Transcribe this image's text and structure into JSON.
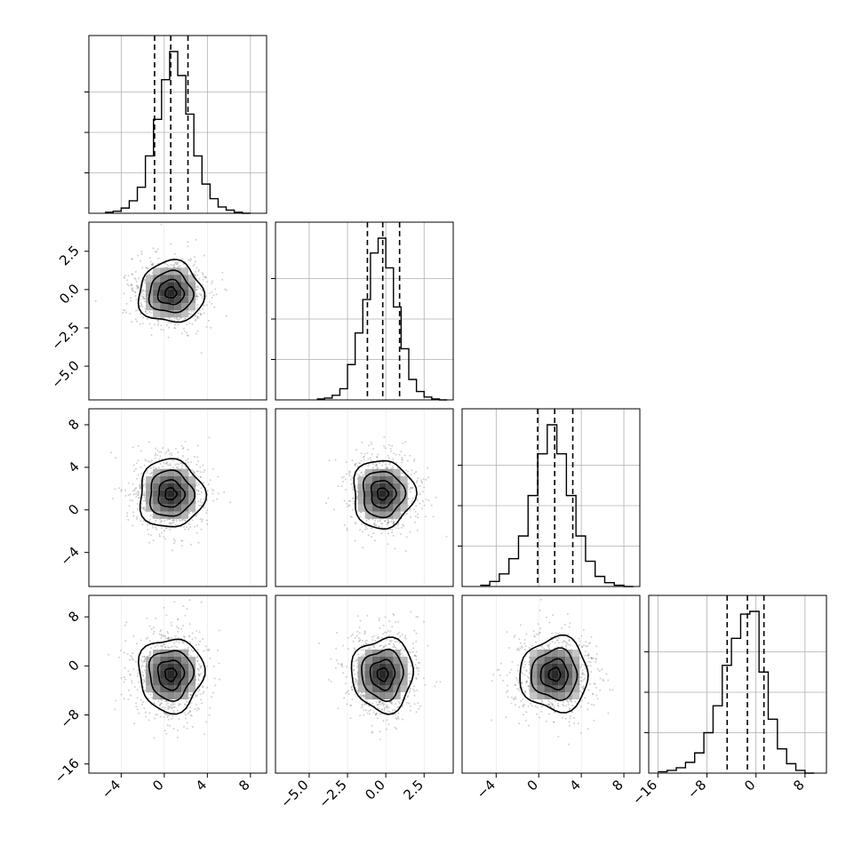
{
  "chart_data": {
    "type": "corner",
    "title": "",
    "grid": true,
    "n_params": 4,
    "params": [
      {
        "xlim": [
          -7,
          9.5
        ],
        "xticks": [
          -4,
          0,
          4,
          8
        ],
        "xtick_labels": [
          "−4",
          "0",
          "4",
          "8"
        ]
      },
      {
        "xlim": [
          -7.2,
          4.4
        ],
        "xticks": [
          -5,
          -2.5,
          0,
          2.5
        ],
        "xtick_labels": [
          "−5.0",
          "−2.5",
          "0.0",
          "2.5"
        ]
      },
      {
        "xlim": [
          -7.2,
          9.5
        ],
        "xticks": [
          -4,
          0,
          4,
          8
        ],
        "xtick_labels": [
          "−4",
          "0",
          "4",
          "8"
        ]
      },
      {
        "xlim": [
          -17.5,
          11.5
        ],
        "xticks": [
          -16,
          -8,
          0,
          8
        ],
        "xtick_labels": [
          "−16",
          "−8",
          "0",
          "8"
        ]
      }
    ],
    "row_axes": [
      {
        "row": 1,
        "yticks": [
          2.5,
          0,
          -2.5,
          -5
        ],
        "ytick_labels": [
          "2.5",
          "0.0",
          "−2.5",
          "−5.0"
        ]
      },
      {
        "row": 2,
        "yticks": [
          8,
          4,
          0,
          -4
        ],
        "ytick_labels": [
          "8",
          "4",
          "0",
          "−4"
        ]
      },
      {
        "row": 3,
        "yticks": [
          8,
          0,
          -8,
          -16
        ],
        "ytick_labels": [
          "8",
          "0",
          "−8",
          "−16"
        ]
      }
    ],
    "quantiles": [
      [
        -0.9,
        0.6,
        2.2
      ],
      [
        -1.2,
        -0.2,
        0.9
      ],
      [
        -0.1,
        1.5,
        3.2
      ],
      [
        -4.7,
        -1.4,
        1.3
      ]
    ],
    "marginals": [
      {
        "bin_edges": [
          -5.5,
          -4.75,
          -4,
          -3.25,
          -2.5,
          -1.75,
          -1,
          -0.25,
          0.5,
          1.25,
          2,
          2.75,
          3.5,
          4.25,
          5,
          5.75,
          6.5,
          7.25,
          8
        ],
        "counts": [
          1,
          2,
          5,
          12,
          25,
          55,
          90,
          128,
          155,
          132,
          95,
          55,
          28,
          14,
          6,
          3,
          1,
          0
        ]
      },
      {
        "bin_edges": [
          -4.5,
          -4,
          -3.5,
          -3,
          -2.5,
          -2,
          -1.5,
          -1,
          -0.5,
          0,
          0.5,
          1,
          1.5,
          2,
          2.5,
          3,
          3.5,
          4
        ],
        "counts": [
          1,
          2,
          5,
          12,
          38,
          72,
          108,
          158,
          174,
          142,
          100,
          55,
          22,
          9,
          3,
          1,
          0
        ]
      },
      {
        "bin_edges": [
          -5.5,
          -4.6,
          -3.7,
          -2.8,
          -1.9,
          -1,
          -0.1,
          0.8,
          1.7,
          2.6,
          3.5,
          4.4,
          5.3,
          6.2,
          7.1,
          8,
          8.9
        ],
        "counts": [
          1,
          4,
          10,
          22,
          40,
          72,
          105,
          128,
          105,
          72,
          40,
          20,
          8,
          3,
          1,
          0
        ]
      },
      {
        "bin_edges": [
          -16,
          -14.5,
          -13,
          -11.5,
          -10,
          -8.5,
          -7,
          -5.5,
          -4,
          -2.5,
          -1,
          0.5,
          2,
          3.5,
          5,
          6.5,
          8,
          9.5
        ],
        "counts": [
          1,
          2,
          4,
          8,
          15,
          30,
          50,
          80,
          100,
          118,
          120,
          75,
          40,
          18,
          7,
          2,
          0
        ]
      }
    ],
    "pairs": [
      {
        "x": 0,
        "y": 1,
        "mean": [
          0.6,
          -0.2
        ],
        "sd": [
          1.5,
          1.0
        ],
        "levels": 3
      },
      {
        "x": 0,
        "y": 2,
        "mean": [
          0.6,
          1.5
        ],
        "sd": [
          1.5,
          1.6
        ],
        "levels": 3
      },
      {
        "x": 1,
        "y": 2,
        "mean": [
          -0.2,
          1.5
        ],
        "sd": [
          1.0,
          1.6
        ],
        "levels": 3
      },
      {
        "x": 0,
        "y": 3,
        "mean": [
          0.6,
          -1.4
        ],
        "sd": [
          1.5,
          3.0
        ],
        "levels": 3
      },
      {
        "x": 1,
        "y": 3,
        "mean": [
          -0.2,
          -1.4
        ],
        "sd": [
          1.0,
          3.0
        ],
        "levels": 3
      },
      {
        "x": 2,
        "y": 3,
        "mean": [
          1.5,
          -1.4
        ],
        "sd": [
          1.6,
          3.0
        ],
        "levels": 3
      }
    ]
  }
}
